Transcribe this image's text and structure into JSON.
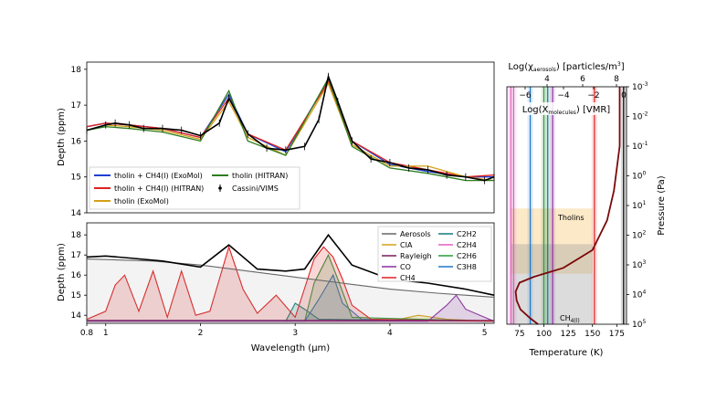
{
  "chart_data": [
    {
      "type": "line",
      "panel": "top-left",
      "ylabel": "Depth (ppm)",
      "xlim": [
        0.8,
        5.1
      ],
      "ylim": [
        14,
        18.2
      ],
      "yticks": [
        "14",
        "15",
        "16",
        "17",
        "18"
      ],
      "legend": [
        "tholin + CH4(l) (ExoMol)",
        "tholin + CH4(l) (HITRAN)",
        "tholin (ExoMol)",
        "tholin (HITRAN)",
        "Cassini/VIMS"
      ],
      "legend_placement": "lower-left",
      "series": [
        {
          "name": "Cassini/VIMS",
          "color": "#000000",
          "x": [
            0.8,
            1.0,
            1.1,
            1.25,
            1.4,
            1.6,
            1.8,
            2.0,
            2.2,
            2.3,
            2.5,
            2.7,
            2.9,
            3.1,
            3.25,
            3.35,
            3.45,
            3.6,
            3.8,
            4.0,
            4.2,
            4.4,
            4.6,
            4.8,
            5.0,
            5.1
          ],
          "y": [
            16.3,
            16.45,
            16.5,
            16.45,
            16.35,
            16.35,
            16.3,
            16.15,
            16.5,
            17.2,
            16.2,
            15.8,
            15.75,
            15.85,
            16.6,
            17.8,
            17.1,
            16.0,
            15.5,
            15.4,
            15.25,
            15.2,
            15.05,
            15.0,
            14.9,
            15.0
          ]
        },
        {
          "name": "tholin + CH4(l) (ExoMol)",
          "color": "#1f3fd6",
          "x": [
            0.8,
            1.0,
            1.25,
            1.6,
            2.0,
            2.3,
            2.5,
            2.9,
            3.35,
            3.6,
            4.0,
            4.4,
            4.8,
            5.1
          ],
          "y": [
            16.4,
            16.5,
            16.45,
            16.35,
            16.1,
            17.3,
            16.2,
            15.7,
            17.7,
            16.0,
            15.35,
            15.15,
            15.0,
            15.0
          ]
        },
        {
          "name": "tholin + CH4(l) (HITRAN)",
          "color": "#e02020",
          "x": [
            0.8,
            1.0,
            1.25,
            1.6,
            2.0,
            2.3,
            2.5,
            2.9,
            3.35,
            3.6,
            4.0,
            4.4,
            4.8,
            5.1
          ],
          "y": [
            16.4,
            16.5,
            16.45,
            16.35,
            16.1,
            17.2,
            16.2,
            15.75,
            17.65,
            16.0,
            15.4,
            15.2,
            15.0,
            15.05
          ]
        },
        {
          "name": "tholin (ExoMol)",
          "color": "#d4a017",
          "x": [
            0.8,
            1.0,
            1.25,
            1.6,
            2.0,
            2.3,
            2.5,
            2.9,
            3.35,
            3.6,
            4.0,
            4.4,
            4.8,
            5.1
          ],
          "y": [
            16.3,
            16.45,
            16.4,
            16.3,
            16.05,
            17.1,
            16.1,
            15.6,
            17.6,
            15.9,
            15.3,
            15.3,
            15.0,
            14.9
          ]
        },
        {
          "name": "tholin (HITRAN)",
          "color": "#2e7d1f",
          "x": [
            0.8,
            1.0,
            1.25,
            1.6,
            2.0,
            2.3,
            2.5,
            2.9,
            3.35,
            3.6,
            4.0,
            4.4,
            4.8,
            5.1
          ],
          "y": [
            16.3,
            16.4,
            16.35,
            16.25,
            16.0,
            17.4,
            16.0,
            15.6,
            17.75,
            15.85,
            15.25,
            15.1,
            14.9,
            14.9
          ]
        }
      ]
    },
    {
      "type": "area",
      "panel": "bottom-left",
      "xlabel": "Wavelength (μm)",
      "ylabel": "Depth (ppm)",
      "xlim": [
        0.8,
        5.1
      ],
      "ylim": [
        13.6,
        18.6
      ],
      "xticks": [
        "0.8",
        "1",
        "2",
        "3",
        "4",
        "5"
      ],
      "yticks": [
        "14",
        "15",
        "16",
        "17",
        "18"
      ],
      "legend": [
        "Aerosols",
        "CIA",
        "Rayleigh",
        "CO",
        "CH4",
        "C2H2",
        "C2H4",
        "C2H6",
        "C3H8"
      ],
      "legend_placement": "upper-right",
      "series": [
        {
          "name": "Cassini/VIMS",
          "color": "#000000",
          "x": [
            0.8,
            1.0,
            1.25,
            1.6,
            2.0,
            2.3,
            2.6,
            2.9,
            3.1,
            3.35,
            3.6,
            4.0,
            4.4,
            4.8,
            5.1
          ],
          "y": [
            16.9,
            16.95,
            16.85,
            16.7,
            16.4,
            17.5,
            16.3,
            16.2,
            16.3,
            18.0,
            16.5,
            15.8,
            15.6,
            15.3,
            15.0
          ]
        },
        {
          "name": "Aerosols",
          "color": "#666666",
          "x": [
            0.8,
            1.5,
            2.0,
            2.5,
            3.0,
            3.5,
            4.0,
            4.5,
            5.1
          ],
          "y": [
            16.8,
            16.7,
            16.5,
            16.2,
            15.9,
            15.6,
            15.3,
            15.1,
            14.9
          ]
        },
        {
          "name": "CH4",
          "color": "#e02020",
          "x": [
            0.8,
            1.0,
            1.1,
            1.2,
            1.35,
            1.5,
            1.65,
            1.8,
            1.95,
            2.1,
            2.3,
            2.45,
            2.6,
            2.8,
            3.0,
            3.2,
            3.3,
            3.4,
            3.5,
            3.6,
            3.8,
            5.1
          ],
          "y": [
            13.8,
            14.2,
            15.5,
            16.0,
            14.2,
            16.2,
            13.9,
            16.2,
            14.0,
            14.2,
            17.4,
            15.3,
            14.1,
            15.0,
            13.9,
            16.8,
            17.4,
            16.9,
            15.8,
            14.5,
            13.8,
            13.7
          ]
        },
        {
          "name": "CO",
          "color": "#8b2ca3",
          "x": [
            0.8,
            4.4,
            4.6,
            4.7,
            4.8,
            5.0,
            5.1
          ],
          "y": [
            13.7,
            13.7,
            14.5,
            15.0,
            14.3,
            13.9,
            13.7
          ]
        },
        {
          "name": "C2H6",
          "color": "#2e9a3a",
          "x": [
            0.8,
            3.1,
            3.2,
            3.35,
            3.45,
            3.6,
            5.1
          ],
          "y": [
            13.7,
            13.7,
            15.6,
            17.0,
            15.8,
            13.9,
            13.7
          ]
        },
        {
          "name": "C3H8",
          "color": "#1f77c9",
          "x": [
            0.8,
            3.1,
            3.25,
            3.4,
            3.5,
            3.7,
            5.1
          ],
          "y": [
            13.7,
            13.7,
            14.8,
            16.0,
            14.6,
            13.8,
            13.7
          ]
        },
        {
          "name": "C2H2",
          "color": "#137a7a",
          "x": [
            0.8,
            2.9,
            3.0,
            3.1,
            3.25,
            5.1
          ],
          "y": [
            13.7,
            13.7,
            14.6,
            14.3,
            13.8,
            13.7
          ]
        },
        {
          "name": "CIA",
          "color": "#d4a017",
          "x": [
            0.8,
            4.0,
            4.3,
            4.6,
            5.1
          ],
          "y": [
            13.7,
            13.7,
            14.0,
            13.8,
            13.7
          ]
        },
        {
          "name": "C2H4",
          "color": "#e060c0",
          "x": [
            0.8,
            5.1
          ],
          "y": [
            13.7,
            13.7
          ]
        }
      ]
    },
    {
      "type": "line",
      "panel": "right",
      "xlabel": "Temperature (K)",
      "ylabel": "Pressure (Pa)",
      "xlim": [
        62,
        185
      ],
      "xticks": [
        "75",
        "100",
        "125",
        "150",
        "175"
      ],
      "ylim_log": [
        -3,
        5
      ],
      "yticks": [
        "10^-3",
        "10^-2",
        "10^-1",
        "10^0",
        "10^1",
        "10^2",
        "10^3",
        "10^4",
        "10^5"
      ],
      "top_axis_label": "Log(χ_aerosols) [particles/m^3]",
      "top_axis_ticks": [
        "4",
        "6",
        "8"
      ],
      "inner_axis_label": "Log(X_molecules) [VMR]",
      "inner_axis_ticks": [
        "−6",
        "−4",
        "−2",
        "0"
      ],
      "bands": [
        {
          "label": "Tholins",
          "color": "#f5c060",
          "p_top_log": 1.1,
          "p_bottom_log": 3.3
        },
        {
          "label": "CH4(l)",
          "color": "#9a9a9a",
          "p_top_log": 2.3,
          "p_bottom_log": 5.0
        }
      ],
      "series": [
        {
          "name": "Temperature profile",
          "color": "#7a0a0a",
          "x": [
            94,
            86,
            76,
            72,
            71,
            75,
            90,
            120,
            150,
            165,
            172,
            178,
            178
          ],
          "y_log": [
            5,
            4.8,
            4.5,
            4.2,
            3.9,
            3.6,
            3.4,
            3.1,
            2.5,
            1.5,
            0.5,
            -1.0,
            -3.0
          ]
        }
      ],
      "vertical_lines": [
        {
          "color": "#e060c0",
          "x": 66
        },
        {
          "color": "#e060c0",
          "x": 69
        },
        {
          "color": "#1f77c9",
          "x": 86
        },
        {
          "color": "#2e9a3a",
          "x": 100
        },
        {
          "color": "#137a7a",
          "x": 104
        },
        {
          "color": "#8b2ca3",
          "x": 109
        },
        {
          "color": "#e02020",
          "x": 152
        },
        {
          "color": "#000000",
          "x": 182
        }
      ]
    }
  ]
}
